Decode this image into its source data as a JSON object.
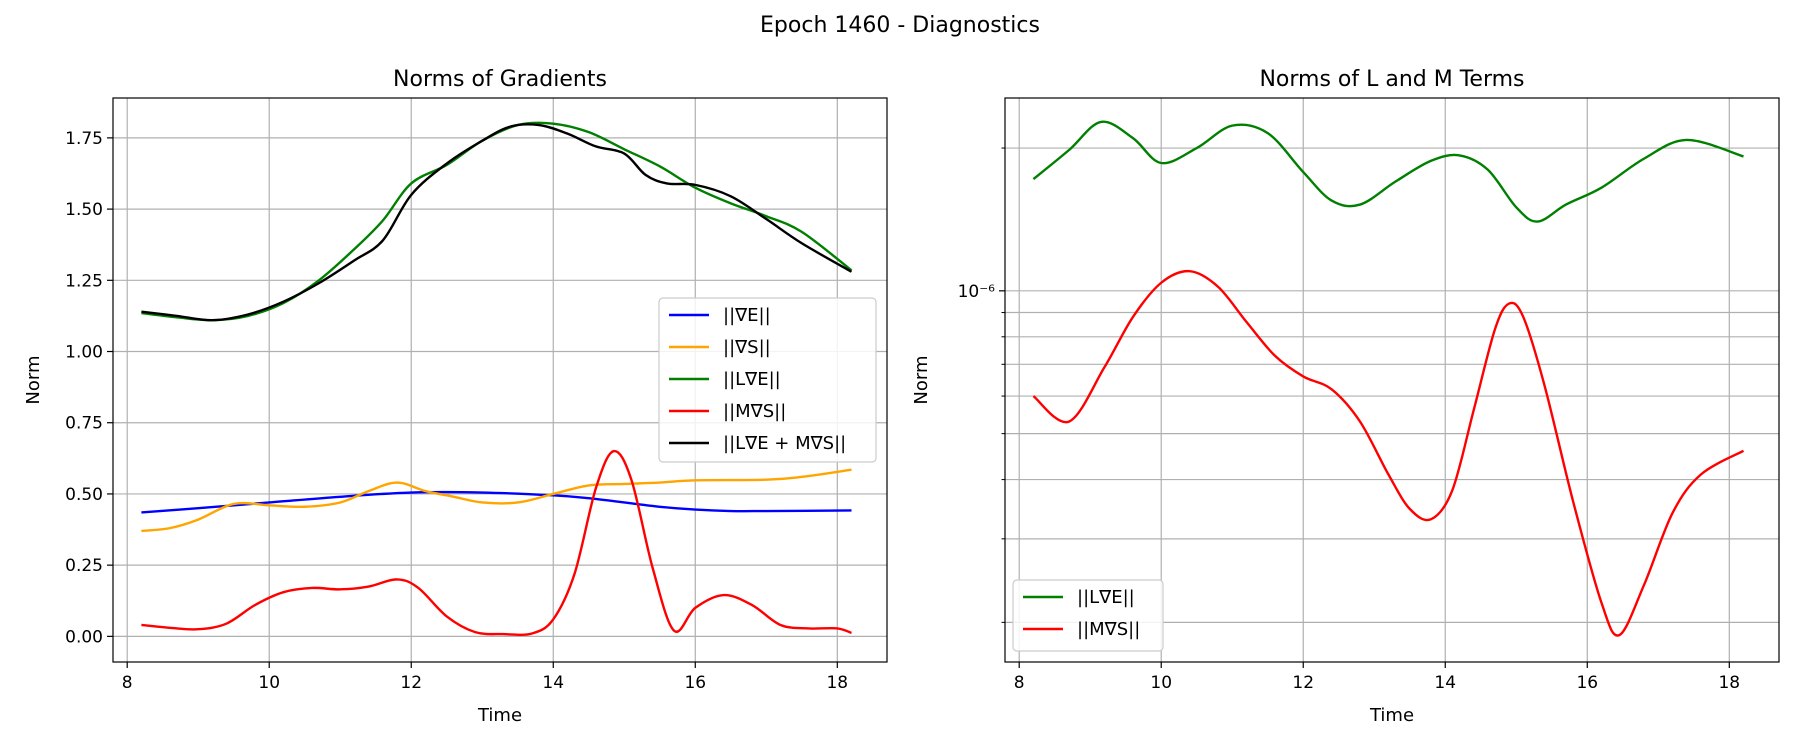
{
  "figure": {
    "suptitle": "Epoch 1460 - Diagnostics"
  },
  "chart_data": [
    {
      "type": "line",
      "title": "Norms of Gradients",
      "xlabel": "Time",
      "ylabel": "Norm",
      "xlim": [
        7.8,
        18.7
      ],
      "ylim": [
        -0.09,
        1.89
      ],
      "xticks": [
        8,
        10,
        12,
        14,
        16,
        18
      ],
      "yticks": [
        0.0,
        0.25,
        0.5,
        0.75,
        1.0,
        1.25,
        1.5,
        1.75
      ],
      "ytick_labels": [
        "0.00",
        "0.25",
        "0.50",
        "0.75",
        "1.00",
        "1.25",
        "1.50",
        "1.75"
      ],
      "grid": true,
      "legend_position": "center-right",
      "series": [
        {
          "name": "||∇E||",
          "color": "#0000ff",
          "points": [
            [
              8.2,
              0.435
            ],
            [
              9,
              0.45
            ],
            [
              10,
              0.47
            ],
            [
              11,
              0.49
            ],
            [
              12,
              0.505
            ],
            [
              13,
              0.505
            ],
            [
              14,
              0.495
            ],
            [
              14.5,
              0.485
            ],
            [
              15,
              0.47
            ],
            [
              15.5,
              0.455
            ],
            [
              16,
              0.445
            ],
            [
              16.5,
              0.44
            ],
            [
              17,
              0.44
            ],
            [
              18.2,
              0.442
            ]
          ]
        },
        {
          "name": "||∇S||",
          "color": "#ffa500",
          "points": [
            [
              8.2,
              0.37
            ],
            [
              8.6,
              0.38
            ],
            [
              9,
              0.41
            ],
            [
              9.5,
              0.465
            ],
            [
              10,
              0.46
            ],
            [
              10.5,
              0.455
            ],
            [
              11,
              0.47
            ],
            [
              11.4,
              0.51
            ],
            [
              11.8,
              0.54
            ],
            [
              12.2,
              0.51
            ],
            [
              12.6,
              0.49
            ],
            [
              13,
              0.47
            ],
            [
              13.5,
              0.47
            ],
            [
              14,
              0.5
            ],
            [
              14.5,
              0.53
            ],
            [
              15,
              0.535
            ],
            [
              15.5,
              0.54
            ],
            [
              16,
              0.548
            ],
            [
              17,
              0.55
            ],
            [
              17.5,
              0.56
            ],
            [
              18.2,
              0.585
            ]
          ]
        },
        {
          "name": "||L∇E||",
          "color": "#008000",
          "points": [
            [
              8.2,
              1.135
            ],
            [
              8.7,
              1.12
            ],
            [
              9.2,
              1.11
            ],
            [
              9.7,
              1.125
            ],
            [
              10.2,
              1.17
            ],
            [
              10.7,
              1.25
            ],
            [
              11.2,
              1.36
            ],
            [
              11.6,
              1.46
            ],
            [
              12,
              1.59
            ],
            [
              12.5,
              1.655
            ],
            [
              13,
              1.74
            ],
            [
              13.5,
              1.795
            ],
            [
              14,
              1.8
            ],
            [
              14.5,
              1.77
            ],
            [
              15,
              1.71
            ],
            [
              15.5,
              1.65
            ],
            [
              16,
              1.575
            ],
            [
              16.5,
              1.52
            ],
            [
              17,
              1.475
            ],
            [
              17.5,
              1.42
            ],
            [
              18.2,
              1.285
            ]
          ]
        },
        {
          "name": "||M∇S||",
          "color": "#ff0000",
          "points": [
            [
              8.2,
              0.04
            ],
            [
              8.6,
              0.03
            ],
            [
              9,
              0.025
            ],
            [
              9.4,
              0.045
            ],
            [
              9.8,
              0.11
            ],
            [
              10.2,
              0.155
            ],
            [
              10.6,
              0.17
            ],
            [
              11,
              0.165
            ],
            [
              11.4,
              0.175
            ],
            [
              11.8,
              0.2
            ],
            [
              12.1,
              0.17
            ],
            [
              12.5,
              0.07
            ],
            [
              12.9,
              0.015
            ],
            [
              13.3,
              0.008
            ],
            [
              13.7,
              0.01
            ],
            [
              14,
              0.06
            ],
            [
              14.3,
              0.22
            ],
            [
              14.6,
              0.52
            ],
            [
              14.85,
              0.65
            ],
            [
              15.1,
              0.55
            ],
            [
              15.4,
              0.24
            ],
            [
              15.7,
              0.02
            ],
            [
              16.0,
              0.1
            ],
            [
              16.4,
              0.145
            ],
            [
              16.8,
              0.11
            ],
            [
              17.2,
              0.04
            ],
            [
              17.6,
              0.028
            ],
            [
              18.0,
              0.028
            ],
            [
              18.2,
              0.012
            ]
          ]
        },
        {
          "name": "||L∇E + M∇S||",
          "color": "#000000",
          "points": [
            [
              8.2,
              1.14
            ],
            [
              8.7,
              1.125
            ],
            [
              9.2,
              1.11
            ],
            [
              9.7,
              1.13
            ],
            [
              10.2,
              1.175
            ],
            [
              10.7,
              1.24
            ],
            [
              11.2,
              1.32
            ],
            [
              11.6,
              1.39
            ],
            [
              12,
              1.55
            ],
            [
              12.5,
              1.66
            ],
            [
              13,
              1.74
            ],
            [
              13.4,
              1.79
            ],
            [
              13.8,
              1.795
            ],
            [
              14.2,
              1.765
            ],
            [
              14.6,
              1.72
            ],
            [
              15,
              1.695
            ],
            [
              15.3,
              1.62
            ],
            [
              15.6,
              1.59
            ],
            [
              16,
              1.585
            ],
            [
              16.5,
              1.545
            ],
            [
              17,
              1.465
            ],
            [
              17.5,
              1.38
            ],
            [
              18.2,
              1.28
            ]
          ]
        }
      ]
    },
    {
      "type": "line",
      "title": "Norms of L and M Terms",
      "xlabel": "Time",
      "ylabel": "Norm",
      "y_scale": "log",
      "xlim": [
        7.8,
        18.7
      ],
      "ylim": [
        1.65e-07,
        2.55e-06
      ],
      "xticks": [
        8,
        10,
        12,
        14,
        16,
        18
      ],
      "yticks_major": [
        1e-06
      ],
      "ytick_labels": [
        "10⁻⁶"
      ],
      "yticks_minor": [
        2e-07,
        3e-07,
        4e-07,
        5e-07,
        6e-07,
        7e-07,
        8e-07,
        9e-07,
        2e-06
      ],
      "grid": true,
      "legend_position": "lower-left",
      "series": [
        {
          "name": "||L∇E||",
          "color": "#008000",
          "points": [
            [
              8.2,
              1.72e-06
            ],
            [
              8.7,
              1.98e-06
            ],
            [
              9.15,
              2.27e-06
            ],
            [
              9.6,
              2.1e-06
            ],
            [
              10,
              1.86e-06
            ],
            [
              10.5,
              2e-06
            ],
            [
              11,
              2.23e-06
            ],
            [
              11.5,
              2.15e-06
            ],
            [
              12,
              1.78e-06
            ],
            [
              12.4,
              1.55e-06
            ],
            [
              12.8,
              1.52e-06
            ],
            [
              13.3,
              1.7e-06
            ],
            [
              13.8,
              1.88e-06
            ],
            [
              14.2,
              1.93e-06
            ],
            [
              14.6,
              1.8e-06
            ],
            [
              15,
              1.5e-06
            ],
            [
              15.3,
              1.4e-06
            ],
            [
              15.7,
              1.52e-06
            ],
            [
              16.2,
              1.65e-06
            ],
            [
              16.8,
              1.9e-06
            ],
            [
              17.4,
              2.08e-06
            ],
            [
              18.2,
              1.92e-06
            ]
          ]
        },
        {
          "name": "||M∇S||",
          "color": "#ff0000",
          "points": [
            [
              8.2,
              6e-07
            ],
            [
              8.7,
              5.3e-07
            ],
            [
              9.2,
              6.9e-07
            ],
            [
              9.6,
              8.8e-07
            ],
            [
              10,
              1.04e-06
            ],
            [
              10.4,
              1.1e-06
            ],
            [
              10.8,
              1.02e-06
            ],
            [
              11.2,
              8.6e-07
            ],
            [
              11.6,
              7.3e-07
            ],
            [
              12,
              6.6e-07
            ],
            [
              12.4,
              6.2e-07
            ],
            [
              12.8,
              5.3e-07
            ],
            [
              13.2,
              4.1e-07
            ],
            [
              13.5,
              3.47e-07
            ],
            [
              13.8,
              3.3e-07
            ],
            [
              14.1,
              3.8e-07
            ],
            [
              14.4,
              5.6e-07
            ],
            [
              14.7,
              8.3e-07
            ],
            [
              14.9,
              9.4e-07
            ],
            [
              15.1,
              8.8e-07
            ],
            [
              15.4,
              6.3e-07
            ],
            [
              15.8,
              3.6e-07
            ],
            [
              16.2,
              2.2e-07
            ],
            [
              16.45,
              1.88e-07
            ],
            [
              16.8,
              2.4e-07
            ],
            [
              17.2,
              3.4e-07
            ],
            [
              17.6,
              4.1e-07
            ],
            [
              18.2,
              4.6e-07
            ]
          ]
        }
      ]
    }
  ]
}
